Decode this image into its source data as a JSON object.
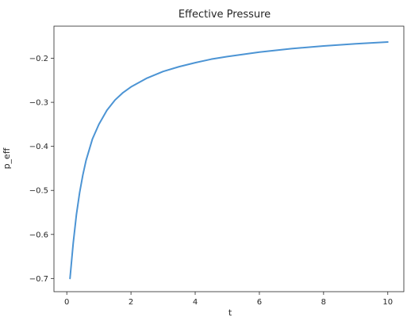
{
  "chart_data": {
    "type": "line",
    "title": "Effective Pressure",
    "xlabel": "t",
    "ylabel": "p_eff",
    "xlim": [
      -0.4,
      10.5
    ],
    "ylim": [
      -0.73,
      -0.127
    ],
    "xticks": [
      0,
      2,
      4,
      6,
      8,
      10
    ],
    "yticks": [
      -0.7,
      -0.6,
      -0.5,
      -0.4,
      -0.3,
      -0.2
    ],
    "xtick_labels": [
      "0",
      "2",
      "4",
      "6",
      "8",
      "10"
    ],
    "ytick_labels": [
      "−0.7",
      "−0.6",
      "−0.5",
      "−0.4",
      "−0.3",
      "−0.2"
    ],
    "grid": false,
    "series": [
      {
        "color": "#4c94d4",
        "x": [
          0.1,
          0.2,
          0.3,
          0.4,
          0.5,
          0.6,
          0.8,
          1.0,
          1.25,
          1.5,
          1.75,
          2.0,
          2.5,
          3.0,
          3.5,
          4.0,
          4.5,
          5.0,
          6.0,
          7.0,
          8.0,
          9.0,
          10.0
        ],
        "y": [
          -0.7,
          -0.62,
          -0.555,
          -0.505,
          -0.465,
          -0.432,
          -0.383,
          -0.35,
          -0.318,
          -0.295,
          -0.278,
          -0.265,
          -0.245,
          -0.23,
          -0.219,
          -0.21,
          -0.202,
          -0.196,
          -0.186,
          -0.178,
          -0.172,
          -0.167,
          -0.163
        ]
      }
    ]
  }
}
